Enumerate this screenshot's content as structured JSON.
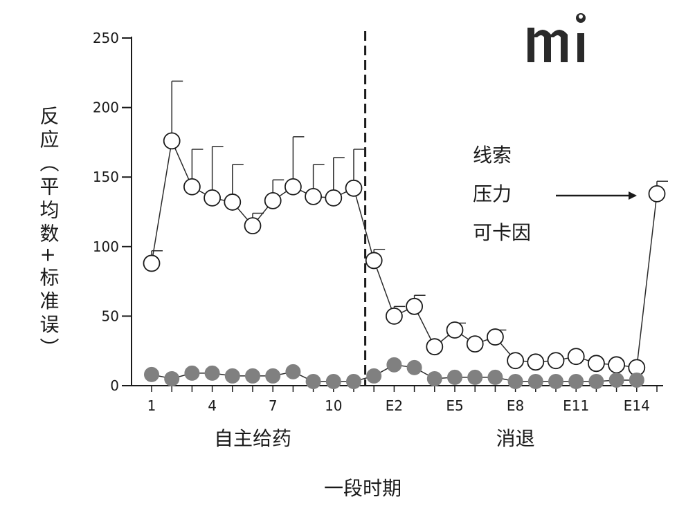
{
  "chart_data": {
    "type": "line",
    "title": "",
    "ylabel": "反应（平均数+标准误）",
    "xlabel": "一段时期",
    "ylim": [
      0,
      250
    ],
    "yticks": [
      0,
      50,
      100,
      150,
      200,
      250
    ],
    "x": [
      "1",
      "2",
      "3",
      "4",
      "5",
      "6",
      "7",
      "8",
      "9",
      "10",
      "11",
      "E1",
      "E2",
      "E3",
      "E4",
      "E5",
      "E6",
      "E7",
      "E8",
      "E9",
      "E10",
      "E11",
      "E12",
      "E13",
      "E14",
      "E15"
    ],
    "xtick_labels": [
      "1",
      "4",
      "7",
      "10",
      "E2",
      "E5",
      "E8",
      "E11",
      "E14"
    ],
    "phase_labels": [
      "自主给药",
      "消退"
    ],
    "phase_divider_after": "11",
    "series": [
      {
        "marker": "open-circle",
        "color": "#ffffff",
        "values": [
          88,
          176,
          143,
          135,
          132,
          115,
          133,
          143,
          136,
          135,
          142,
          90,
          50,
          57,
          28,
          40,
          30,
          35,
          18,
          17,
          18,
          21,
          16,
          15,
          13,
          138
        ],
        "errors": [
          9,
          43,
          27,
          37,
          27,
          9,
          15,
          36,
          23,
          29,
          28,
          8,
          7,
          8,
          0,
          5,
          0,
          5,
          0,
          0,
          0,
          0,
          0,
          0,
          0,
          9
        ]
      },
      {
        "marker": "filled-circle",
        "color": "#808080",
        "values": [
          8,
          5,
          9,
          9,
          7,
          7,
          7,
          10,
          3,
          3,
          3,
          7,
          15,
          13,
          5,
          6,
          6,
          6,
          3,
          3,
          3,
          3,
          3,
          4,
          4,
          null
        ]
      }
    ],
    "annotation": {
      "lines": [
        "线索",
        "压力",
        "可卡因"
      ],
      "arrow_to": "E15"
    },
    "grid": false,
    "legend": "none"
  },
  "logo": {
    "text": "mi",
    "icon": "mi-logo-icon"
  }
}
